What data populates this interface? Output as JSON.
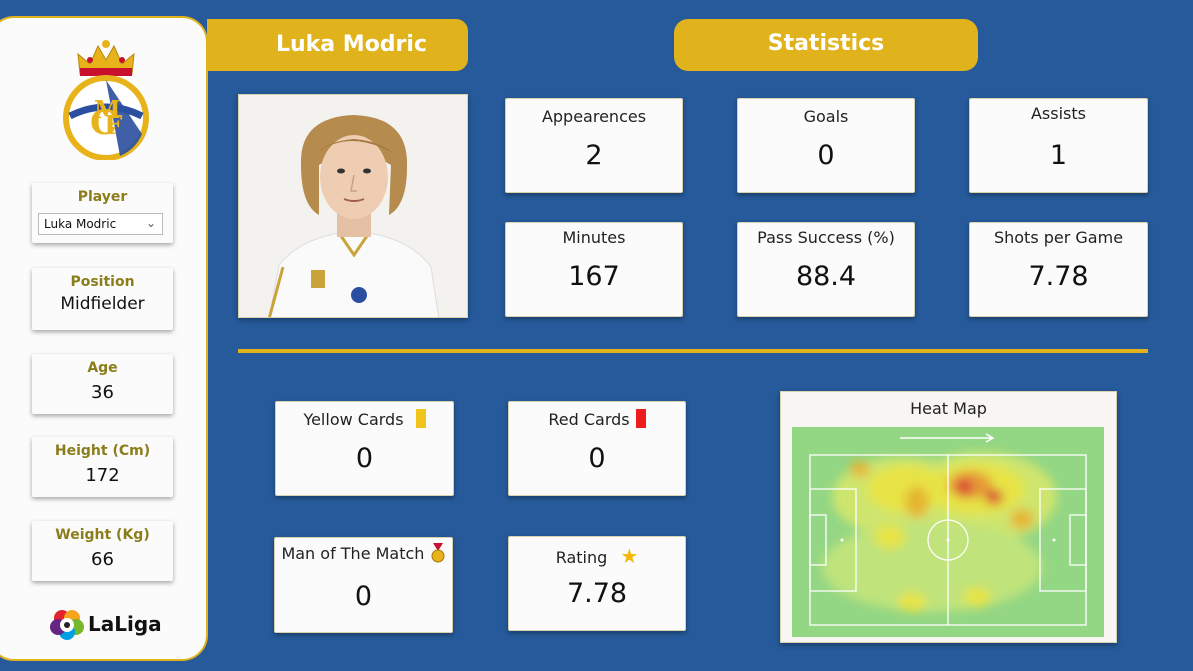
{
  "player": {
    "name": "Luka Modric",
    "dropdown_label": "Player",
    "dropdown_value": "Luka Modric",
    "position_label": "Position",
    "position": "Midfielder",
    "age_label": "Age",
    "age": "36",
    "height_label": "Height (Cm)",
    "height": "172",
    "weight_label": "Weight (Kg)",
    "weight": "66"
  },
  "branding": {
    "league_name": "LaLiga",
    "club_crest_icon": "real-madrid-crest-icon",
    "league_logo_icon": "laliga-logo-icon"
  },
  "header": {
    "statistics_title": "Statistics"
  },
  "stats": {
    "appearances_label": "Appearences",
    "appearances": "2",
    "goals_label": "Goals",
    "goals": "0",
    "assists_label": "Assists",
    "assists": "1",
    "minutes_label": "Minutes",
    "minutes": "167",
    "pass_label": "Pass Success (%)",
    "pass": "88.4",
    "shots_label": "Shots per Game",
    "shots": "7.78"
  },
  "discipline": {
    "yellow_label": "Yellow Cards",
    "yellow": "0",
    "red_label": "Red Cards",
    "red": "0",
    "motm_label": "Man of The Match",
    "motm": "0",
    "rating_label": "Rating",
    "rating": "7.78"
  },
  "heatmap": {
    "title": "Heat Map"
  },
  "colors": {
    "background": "#265a9a",
    "accent_gold": "#e0b21b",
    "card": "#fbfbfb",
    "pitch": "#93d684"
  }
}
